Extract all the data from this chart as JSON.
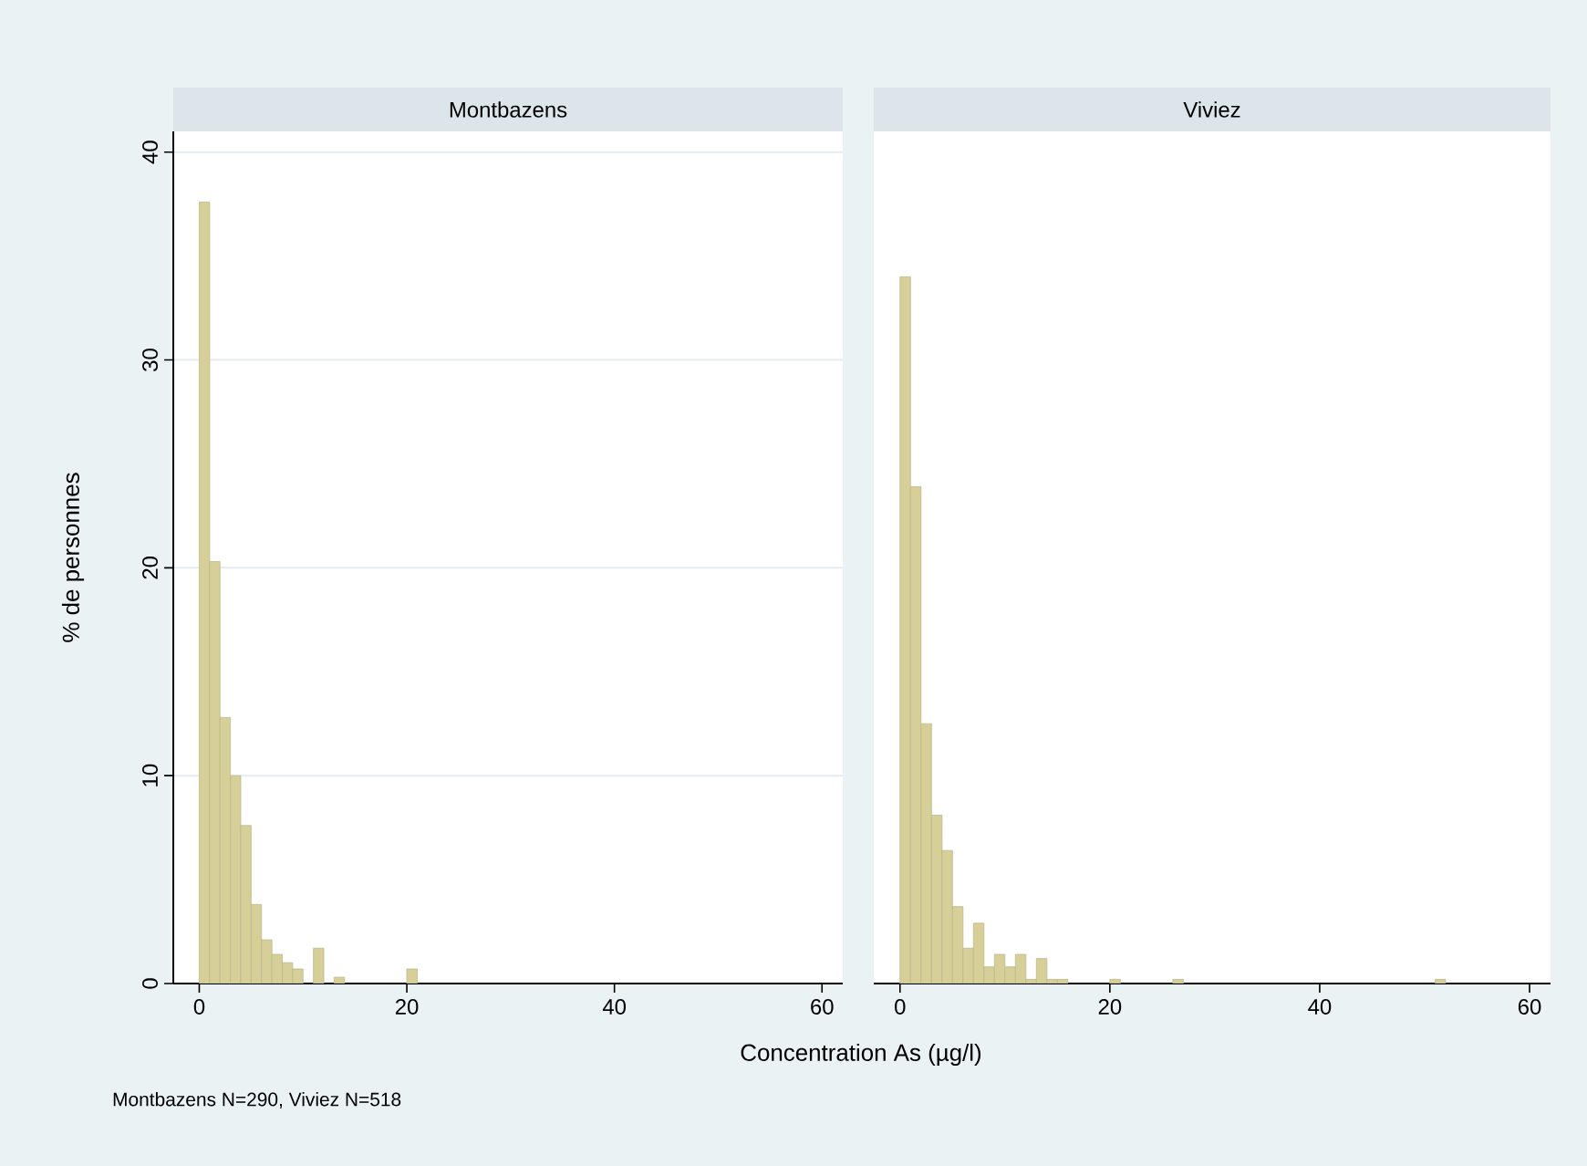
{
  "chart_data": [
    {
      "type": "histogram",
      "title": "Montbazens",
      "ylabel": "% de personnes",
      "xlabel": "Concentration As (µg/l)",
      "annotations": [
        "Montbazens N=290, Viviez N=518"
      ],
      "color": "#d6cf97",
      "bins": [
        0,
        1,
        2,
        3,
        4,
        5,
        6,
        7,
        8,
        9,
        10,
        11,
        12,
        13,
        14,
        15,
        16,
        17,
        18,
        19,
        20,
        21
      ],
      "values": [
        37.6,
        20.3,
        12.8,
        10.0,
        7.6,
        3.8,
        2.1,
        1.4,
        1.0,
        0.7,
        0,
        1.7,
        0,
        0.3,
        0,
        0,
        0,
        0,
        0,
        0,
        0.7
      ],
      "xlim": [
        -2.5,
        62
      ],
      "xticks": [
        0,
        20,
        40,
        60
      ],
      "ylim": [
        0,
        41
      ],
      "yticks": [
        0,
        10,
        20,
        30,
        40
      ],
      "grid": "y"
    },
    {
      "type": "histogram",
      "title": "Viviez",
      "color": "#d6cf97",
      "bins": [
        0,
        1,
        2,
        3,
        4,
        5,
        6,
        7,
        8,
        9,
        10,
        11,
        12,
        13,
        14,
        15,
        16,
        17,
        18,
        19,
        20,
        21,
        22,
        23,
        24,
        25,
        26,
        27,
        28,
        29,
        30,
        31,
        32,
        33,
        34,
        35,
        36,
        37,
        38,
        39,
        40,
        41,
        42,
        43,
        44,
        45,
        46,
        47,
        48,
        49,
        50,
        51,
        52
      ],
      "values": [
        34.0,
        23.9,
        12.5,
        8.1,
        6.4,
        3.7,
        1.7,
        2.9,
        0.8,
        1.4,
        0.8,
        1.4,
        0.2,
        1.2,
        0.2,
        0.2,
        0,
        0,
        0,
        0,
        0.2,
        0,
        0,
        0,
        0,
        0,
        0.2,
        0,
        0,
        0,
        0,
        0,
        0,
        0,
        0,
        0,
        0,
        0,
        0,
        0,
        0,
        0,
        0,
        0,
        0,
        0,
        0,
        0,
        0,
        0,
        0,
        0.2
      ],
      "xlim": [
        -2.5,
        62
      ],
      "xticks": [
        0,
        20,
        40,
        60
      ],
      "ylim": [
        0,
        41
      ],
      "yticks": [
        0,
        10,
        20,
        30,
        40
      ],
      "grid": "y",
      "tick_labels": "x"
    }
  ]
}
